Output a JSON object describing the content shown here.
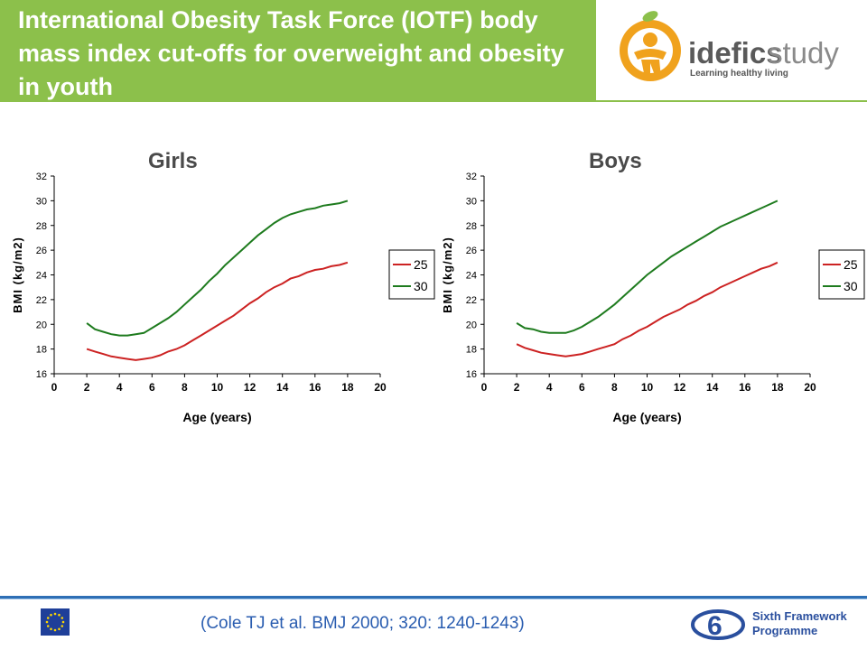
{
  "header": {
    "title": "International Obesity Task Force (IOTF) body mass index cut-offs for overweight and obesity in youth"
  },
  "logo": {
    "text_primary": "idefics",
    "text_secondary": "study",
    "tagline": "Learning healthy living"
  },
  "chart_data": [
    {
      "type": "line",
      "title": "Girls",
      "xlabel": "Age (years)",
      "ylabel": "BMI (kg/m2)",
      "xlim": [
        0,
        20
      ],
      "ylim": [
        16,
        32
      ],
      "x_ticks": [
        0,
        2,
        4,
        6,
        8,
        10,
        12,
        14,
        16,
        18,
        20
      ],
      "y_ticks": [
        16,
        18,
        20,
        22,
        24,
        26,
        28,
        30,
        32
      ],
      "legend_position": "right",
      "grid": false,
      "x": [
        2,
        2.5,
        3,
        3.5,
        4,
        4.5,
        5,
        5.5,
        6,
        6.5,
        7,
        7.5,
        8,
        8.5,
        9,
        9.5,
        10,
        10.5,
        11,
        11.5,
        12,
        12.5,
        13,
        13.5,
        14,
        14.5,
        15,
        15.5,
        16,
        16.5,
        17,
        17.5,
        18
      ],
      "series": [
        {
          "name": "25",
          "color": "#cc2222",
          "values": [
            18.0,
            17.8,
            17.6,
            17.4,
            17.3,
            17.2,
            17.1,
            17.2,
            17.3,
            17.5,
            17.8,
            18.0,
            18.3,
            18.7,
            19.1,
            19.5,
            19.9,
            20.3,
            20.7,
            21.2,
            21.7,
            22.1,
            22.6,
            23.0,
            23.3,
            23.7,
            23.9,
            24.2,
            24.4,
            24.5,
            24.7,
            24.8,
            25.0
          ]
        },
        {
          "name": "30",
          "color": "#1e7b1e",
          "values": [
            20.1,
            19.6,
            19.4,
            19.2,
            19.1,
            19.1,
            19.2,
            19.3,
            19.7,
            20.1,
            20.5,
            21.0,
            21.6,
            22.2,
            22.8,
            23.5,
            24.1,
            24.8,
            25.4,
            26.0,
            26.6,
            27.2,
            27.7,
            28.2,
            28.6,
            28.9,
            29.1,
            29.3,
            29.4,
            29.6,
            29.7,
            29.8,
            30.0
          ]
        }
      ]
    },
    {
      "type": "line",
      "title": "Boys",
      "xlabel": "Age (years)",
      "ylabel": "BMI (kg/m2)",
      "xlim": [
        0,
        20
      ],
      "ylim": [
        16,
        32
      ],
      "x_ticks": [
        0,
        2,
        4,
        6,
        8,
        10,
        12,
        14,
        16,
        18,
        20
      ],
      "y_ticks": [
        16,
        18,
        20,
        22,
        24,
        26,
        28,
        30,
        32
      ],
      "legend_position": "right",
      "grid": false,
      "x": [
        2,
        2.5,
        3,
        3.5,
        4,
        4.5,
        5,
        5.5,
        6,
        6.5,
        7,
        7.5,
        8,
        8.5,
        9,
        9.5,
        10,
        10.5,
        11,
        11.5,
        12,
        12.5,
        13,
        13.5,
        14,
        14.5,
        15,
        15.5,
        16,
        16.5,
        17,
        17.5,
        18
      ],
      "series": [
        {
          "name": "25",
          "color": "#cc2222",
          "values": [
            18.4,
            18.1,
            17.9,
            17.7,
            17.6,
            17.5,
            17.4,
            17.5,
            17.6,
            17.8,
            18.0,
            18.2,
            18.4,
            18.8,
            19.1,
            19.5,
            19.8,
            20.2,
            20.6,
            20.9,
            21.2,
            21.6,
            21.9,
            22.3,
            22.6,
            23.0,
            23.3,
            23.6,
            23.9,
            24.2,
            24.5,
            24.7,
            25.0
          ]
        },
        {
          "name": "30",
          "color": "#1e7b1e",
          "values": [
            20.1,
            19.7,
            19.6,
            19.4,
            19.3,
            19.3,
            19.3,
            19.5,
            19.8,
            20.2,
            20.6,
            21.1,
            21.6,
            22.2,
            22.8,
            23.4,
            24.0,
            24.5,
            25.0,
            25.5,
            25.9,
            26.3,
            26.7,
            27.1,
            27.5,
            27.9,
            28.2,
            28.5,
            28.8,
            29.1,
            29.4,
            29.7,
            30.0
          ]
        }
      ]
    }
  ],
  "footer": {
    "citation": "(Cole TJ et al. BMJ 2000; 320: 1240-1243)",
    "fp6_line1": "Sixth Framework",
    "fp6_line2": "Programme"
  }
}
